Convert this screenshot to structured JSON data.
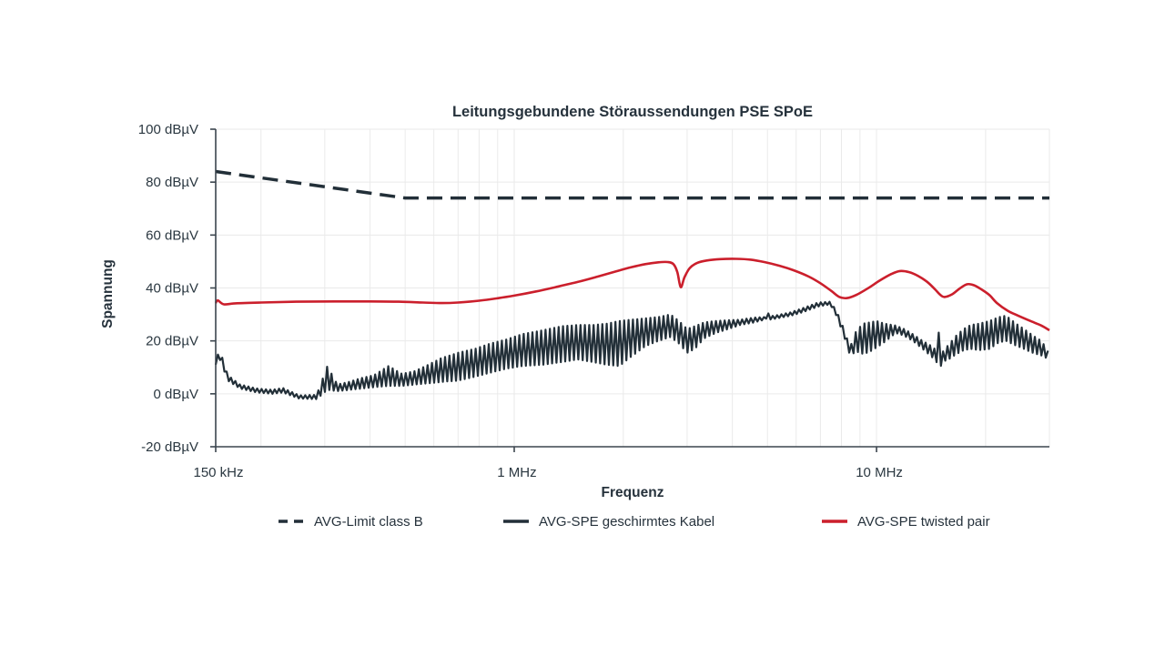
{
  "title": "Leitungsgebundene Störaussendungen PSE SPoE",
  "axes": {
    "x_label": "Frequenz",
    "y_label": "Spannung"
  },
  "legend": [
    {
      "label": "AVG-Limit class B",
      "style": "dashed",
      "color": "#222f38"
    },
    {
      "label": "AVG-SPE geschirmtes Kabel",
      "style": "solid",
      "color": "#222f38"
    },
    {
      "label": "AVG-SPE twisted pair",
      "style": "solid",
      "color": "#cb1f2c"
    }
  ],
  "colors": {
    "dark": "#222f38",
    "red": "#cb1f2c",
    "axis": "#3b454e",
    "grid": "#eaeaea",
    "text": "#2a3740",
    "background": "#ffffff"
  },
  "chart_data": {
    "type": "line",
    "title": "Leitungsgebundene Störaussendungen PSE SPoE",
    "xlabel": "Frequenz",
    "ylabel": "Spannung",
    "x_scale": "log",
    "x_unit": "MHz",
    "y_unit": "dBµV",
    "x_range": [
      0.15,
      30
    ],
    "y_range": [
      -20,
      100
    ],
    "x_ticks": [
      {
        "v": 0.15,
        "label": "150 kHz"
      },
      {
        "v": 1,
        "label": "1 MHz"
      },
      {
        "v": 10,
        "label": "10 MHz"
      }
    ],
    "y_ticks": [
      {
        "v": 100,
        "label": "100 dBµV"
      },
      {
        "v": 80,
        "label": "80 dBµV"
      },
      {
        "v": 60,
        "label": "60 dBµV"
      },
      {
        "v": 40,
        "label": "40 dBµV"
      },
      {
        "v": 20,
        "label": "20 dBµV"
      },
      {
        "v": 0,
        "label": "0 dBµV"
      },
      {
        "v": -20,
        "label": "-20 dBµV"
      }
    ],
    "grid": {
      "v_lines": [
        0.2,
        0.3,
        0.4,
        0.5,
        0.6,
        0.7,
        0.8,
        0.9,
        1,
        2,
        3,
        4,
        5,
        6,
        7,
        8,
        9,
        10,
        20,
        30
      ],
      "h_lines": [
        0,
        20,
        40,
        60,
        80,
        100
      ]
    },
    "legend_position": "bottom",
    "series": [
      {
        "name": "AVG-Limit class B",
        "color": "#222f38",
        "width": 3.5,
        "dash": "17 9",
        "render": "linear",
        "points": [
          [
            0.15,
            84
          ],
          [
            0.5,
            74
          ],
          [
            30,
            74
          ]
        ]
      },
      {
        "name": "AVG-SPE twisted pair",
        "color": "#cb1f2c",
        "width": 2.6,
        "render": "smooth",
        "points": [
          [
            0.15,
            34.3
          ],
          [
            0.152,
            35.3
          ],
          [
            0.158,
            33.8
          ],
          [
            0.17,
            34.2
          ],
          [
            0.2,
            34.5
          ],
          [
            0.25,
            34.8
          ],
          [
            0.32,
            34.9
          ],
          [
            0.4,
            34.9
          ],
          [
            0.48,
            34.8
          ],
          [
            0.56,
            34.5
          ],
          [
            0.63,
            34.3
          ],
          [
            0.7,
            34.5
          ],
          [
            0.8,
            35.2
          ],
          [
            0.9,
            36.1
          ],
          [
            1.0,
            37.1
          ],
          [
            1.15,
            38.7
          ],
          [
            1.3,
            40.3
          ],
          [
            1.5,
            42.3
          ],
          [
            1.7,
            44.3
          ],
          [
            1.9,
            46.2
          ],
          [
            2.1,
            47.8
          ],
          [
            2.3,
            49.0
          ],
          [
            2.5,
            49.7
          ],
          [
            2.65,
            49.8
          ],
          [
            2.75,
            49.0
          ],
          [
            2.82,
            46.0
          ],
          [
            2.88,
            40.3
          ],
          [
            2.95,
            44.0
          ],
          [
            3.05,
            47.5
          ],
          [
            3.2,
            49.5
          ],
          [
            3.4,
            50.4
          ],
          [
            3.7,
            50.9
          ],
          [
            4.1,
            51.0
          ],
          [
            4.5,
            50.7
          ],
          [
            4.9,
            49.8
          ],
          [
            5.4,
            48.4
          ],
          [
            5.9,
            46.7
          ],
          [
            6.5,
            44.3
          ],
          [
            7.0,
            41.8
          ],
          [
            7.5,
            38.9
          ],
          [
            7.9,
            36.6
          ],
          [
            8.3,
            36.2
          ],
          [
            8.8,
            37.4
          ],
          [
            9.5,
            40.0
          ],
          [
            10.2,
            42.8
          ],
          [
            11.0,
            45.3
          ],
          [
            11.6,
            46.4
          ],
          [
            12.3,
            46.0
          ],
          [
            13.0,
            44.6
          ],
          [
            13.8,
            42.3
          ],
          [
            14.5,
            39.5
          ],
          [
            15.0,
            37.4
          ],
          [
            15.4,
            36.6
          ],
          [
            16.2,
            37.7
          ],
          [
            17.0,
            39.9
          ],
          [
            17.8,
            41.4
          ],
          [
            18.6,
            41.0
          ],
          [
            19.5,
            39.4
          ],
          [
            20.5,
            37.3
          ],
          [
            21.5,
            34.3
          ],
          [
            23.0,
            31.4
          ],
          [
            24.5,
            29.6
          ],
          [
            26.5,
            27.6
          ],
          [
            28.5,
            25.8
          ],
          [
            30.0,
            24.0
          ]
        ]
      },
      {
        "name": "AVG-SPE geschirmtes Kabel",
        "color": "#222f38",
        "width": 2.2,
        "render": "oscillating",
        "envelope": [
          [
            0.15,
            11,
            13
          ],
          [
            0.154,
            13,
            16.5
          ],
          [
            0.162,
            5,
            7
          ],
          [
            0.175,
            2,
            3.5
          ],
          [
            0.195,
            0.5,
            2
          ],
          [
            0.215,
            0,
            1.5
          ],
          [
            0.23,
            0.5,
            2.2
          ],
          [
            0.255,
            -1.8,
            -0.6
          ],
          [
            0.285,
            -2,
            -0.4
          ],
          [
            0.305,
            1.5,
            10.5
          ],
          [
            0.325,
            1,
            3.5
          ],
          [
            0.35,
            1.5,
            4.5
          ],
          [
            0.38,
            2,
            6
          ],
          [
            0.41,
            2.5,
            7
          ],
          [
            0.45,
            3,
            10.5
          ],
          [
            0.49,
            3,
            7.5
          ],
          [
            0.53,
            3.5,
            8.5
          ],
          [
            0.58,
            4,
            11
          ],
          [
            0.63,
            4.5,
            13.5
          ],
          [
            0.7,
            5,
            15.5
          ],
          [
            0.78,
            6.5,
            17
          ],
          [
            0.86,
            8,
            19
          ],
          [
            0.95,
            9.5,
            20.5
          ],
          [
            1.05,
            10.5,
            22.5
          ],
          [
            1.2,
            11,
            24
          ],
          [
            1.35,
            12,
            25.5
          ],
          [
            1.5,
            13,
            26
          ],
          [
            1.65,
            12,
            26
          ],
          [
            1.8,
            11,
            26.5
          ],
          [
            1.95,
            10.5,
            27.5
          ],
          [
            2.1,
            14,
            28
          ],
          [
            2.3,
            18,
            28.5
          ],
          [
            2.5,
            20,
            29
          ],
          [
            2.7,
            21.5,
            30
          ],
          [
            2.85,
            19,
            27.5
          ],
          [
            3.0,
            15.5,
            24.5
          ],
          [
            3.15,
            17,
            25.5
          ],
          [
            3.35,
            21,
            27
          ],
          [
            3.6,
            23,
            27.5
          ],
          [
            3.9,
            24.5,
            27.8
          ],
          [
            4.2,
            26,
            28
          ],
          [
            4.6,
            27,
            28.8
          ],
          [
            4.9,
            28,
            29
          ],
          [
            4.97,
            28.5,
            33.5
          ],
          [
            5.05,
            28,
            29.2
          ],
          [
            5.35,
            28.6,
            29.8
          ],
          [
            5.8,
            29.5,
            30.8
          ],
          [
            6.3,
            31,
            32.5
          ],
          [
            6.9,
            33,
            34.5
          ],
          [
            7.45,
            33.8,
            34.8
          ],
          [
            7.75,
            29.5,
            31.5
          ],
          [
            8.1,
            22.5,
            25
          ],
          [
            8.45,
            14.5,
            17.5
          ],
          [
            8.8,
            16,
            24
          ],
          [
            9.2,
            15,
            26.5
          ],
          [
            9.6,
            16,
            27
          ],
          [
            10.0,
            17.5,
            27.5
          ],
          [
            10.5,
            19.5,
            26.5
          ],
          [
            11.3,
            23,
            25.8
          ],
          [
            11.9,
            22,
            24.5
          ],
          [
            12.6,
            20,
            22.5
          ],
          [
            13.4,
            17,
            20
          ],
          [
            14.2,
            14,
            18
          ],
          [
            14.75,
            11.5,
            16
          ],
          [
            14.95,
            9,
            30.5
          ],
          [
            15.15,
            12,
            15.5
          ],
          [
            15.8,
            13,
            18.5
          ],
          [
            16.6,
            15,
            22
          ],
          [
            17.4,
            16.5,
            24.5
          ],
          [
            18.2,
            17,
            26
          ],
          [
            19.2,
            16.5,
            26.5
          ],
          [
            20.5,
            17,
            27.5
          ],
          [
            21.8,
            19.5,
            29
          ],
          [
            22.8,
            20,
            29.5
          ],
          [
            24.0,
            18.5,
            27
          ],
          [
            25.5,
            17,
            24.5
          ],
          [
            27.0,
            15.5,
            22
          ],
          [
            28.5,
            14.5,
            20
          ],
          [
            30.0,
            13,
            15.5
          ]
        ]
      }
    ]
  }
}
